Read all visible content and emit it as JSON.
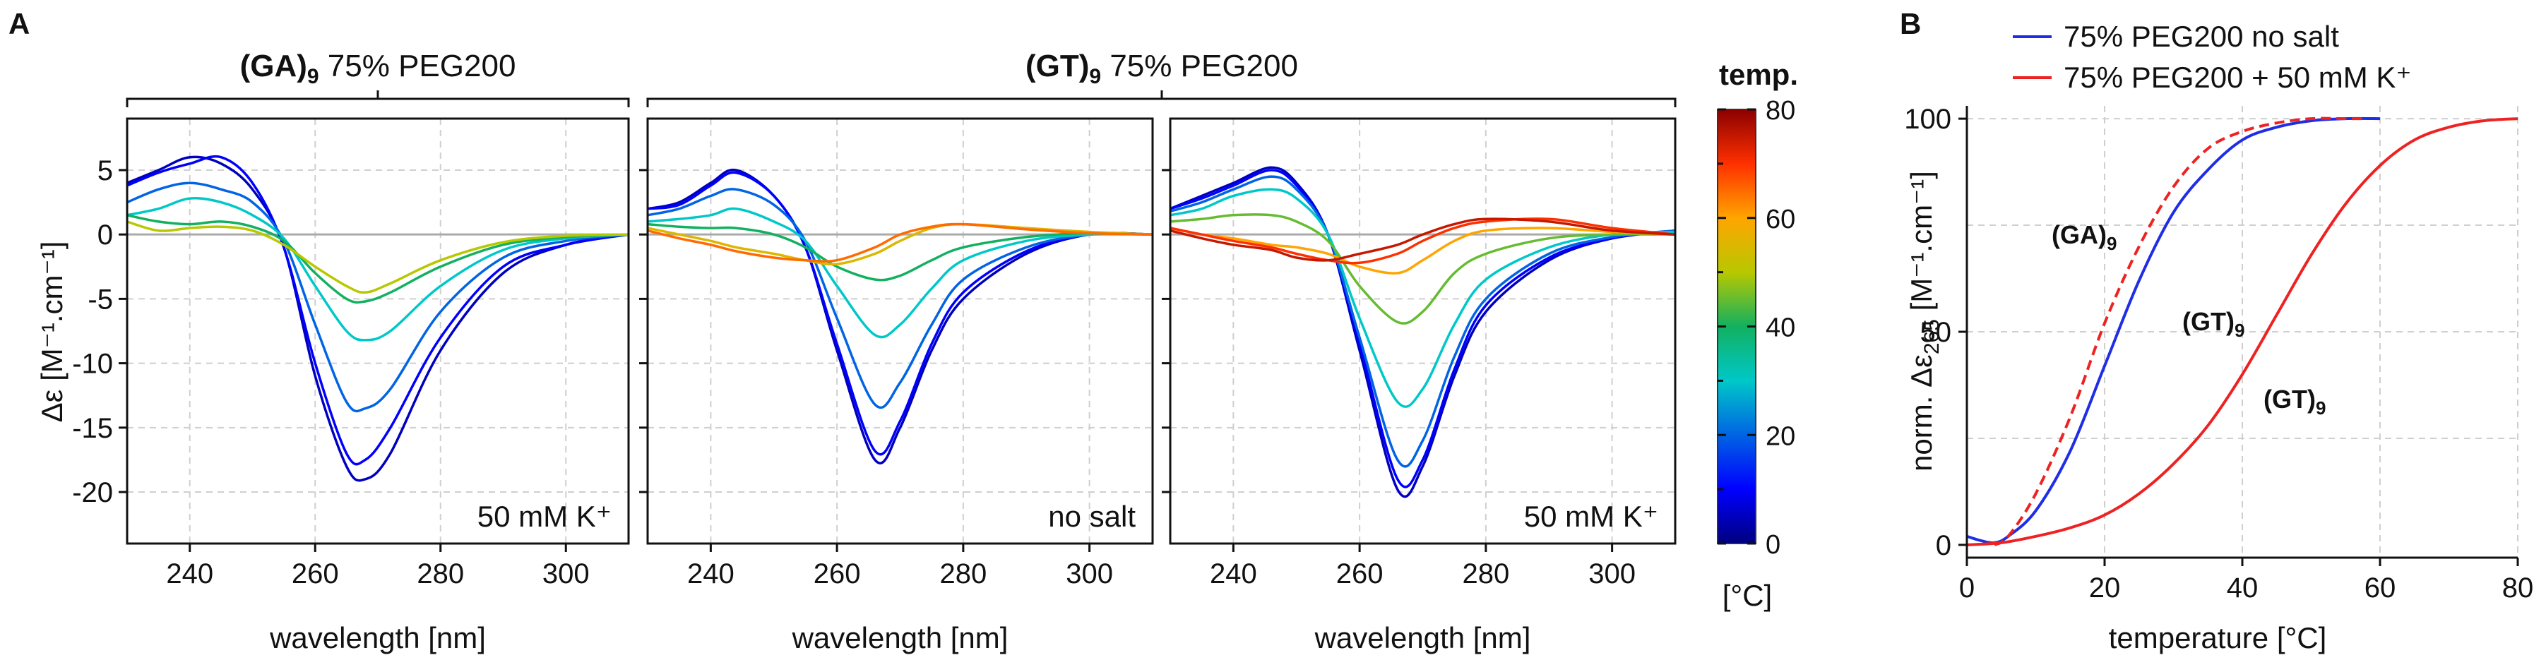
{
  "panel_labels": {
    "a": "A",
    "b": "B"
  },
  "colorbar": {
    "title": "temp.",
    "unit": "[°C]",
    "ticks": [
      0,
      20,
      40,
      60,
      80
    ],
    "range": [
      0,
      80
    ]
  },
  "panel_a": {
    "ylabel": "Δε [M⁻¹.cm⁻¹]",
    "xlabel": "wavelength [nm]",
    "xlim": [
      230,
      310
    ],
    "ylim": [
      -24,
      9
    ],
    "xticks": [
      240,
      260,
      280,
      300
    ],
    "yticks": [
      5,
      0,
      -5,
      -10,
      -15,
      -20
    ],
    "groups": [
      {
        "main": "(GA)",
        "sub": "9",
        "rest": " 75% PEG200"
      },
      {
        "main": "(GT)",
        "sub": "9",
        "rest": " 75% PEG200"
      }
    ],
    "subpanels": [
      {
        "annotation": "50 mM K⁺"
      },
      {
        "annotation": "no salt"
      },
      {
        "annotation": "50 mM K⁺"
      }
    ]
  },
  "panel_b": {
    "ylabel_main": "norm. Δε",
    "ylabel_sub": "265",
    "ylabel_rest": " [M⁻¹.cm⁻¹]",
    "xlabel": "temperature [°C]",
    "xlim": [
      0,
      80
    ],
    "ylim": [
      -3,
      103
    ],
    "xticks": [
      0,
      20,
      40,
      60,
      80
    ],
    "yticks": [
      0,
      50,
      100
    ],
    "legend": [
      {
        "label": "75% PEG200 no salt",
        "color": "#1f2ee6"
      },
      {
        "label": "75% PEG200 + 50 mM K⁺",
        "color": "#ee2222"
      }
    ],
    "annotations": [
      {
        "main": "(GA)",
        "sub": "9",
        "color": "#ee2222"
      },
      {
        "main": "(GT)",
        "sub": "9",
        "color": "#1f2ee6"
      },
      {
        "main": "(GT)",
        "sub": "9",
        "color": "#ee2222"
      }
    ]
  },
  "chart_data": [
    {
      "type": "line",
      "title": "(GA)9 75% PEG200 — 50 mM K⁺",
      "xlabel": "wavelength [nm]",
      "ylabel": "Δε [M⁻¹.cm⁻¹]",
      "xlim": [
        230,
        310
      ],
      "ylim": [
        -24,
        9
      ],
      "x": [
        230,
        235,
        240,
        245,
        250,
        255,
        260,
        265,
        268,
        272,
        280,
        290,
        300,
        310
      ],
      "series": [
        {
          "temp": 5,
          "values": [
            4,
            5,
            6,
            5.5,
            3.5,
            -1,
            -11,
            -18,
            -19,
            -17,
            -9,
            -3,
            -0.8,
            0
          ]
        },
        {
          "temp": 10,
          "values": [
            3.8,
            4.8,
            5.5,
            6,
            4,
            -1,
            -10,
            -17,
            -17.5,
            -15,
            -8,
            -2.5,
            -0.8,
            0
          ]
        },
        {
          "temp": 20,
          "values": [
            2.5,
            3.5,
            4,
            3.5,
            2.5,
            -0.5,
            -7,
            -13,
            -13.5,
            -12,
            -6,
            -1.8,
            -0.5,
            0
          ]
        },
        {
          "temp": 30,
          "values": [
            1.5,
            2,
            2.8,
            2.5,
            1.5,
            -0.3,
            -4,
            -7.5,
            -8.2,
            -7.5,
            -4,
            -1.2,
            -0.3,
            0
          ]
        },
        {
          "temp": 40,
          "values": [
            1.5,
            1,
            0.8,
            1,
            0.6,
            -0.5,
            -3,
            -5,
            -5.2,
            -4.5,
            -2.5,
            -0.8,
            -0.2,
            0
          ]
        },
        {
          "temp": 50,
          "values": [
            1,
            0.3,
            0.5,
            0.6,
            0.3,
            -0.8,
            -2.5,
            -4,
            -4.5,
            -3.8,
            -2,
            -0.6,
            -0.1,
            0
          ]
        }
      ]
    },
    {
      "type": "line",
      "title": "(GT)9 75% PEG200 — no salt",
      "xlabel": "wavelength [nm]",
      "ylabel": "Δε [M⁻¹.cm⁻¹]",
      "xlim": [
        230,
        310
      ],
      "ylim": [
        -24,
        9
      ],
      "x": [
        230,
        235,
        240,
        244,
        250,
        255,
        260,
        266,
        270,
        275,
        280,
        290,
        300,
        310
      ],
      "series": [
        {
          "temp": 5,
          "values": [
            2,
            2.5,
            4,
            5,
            3,
            -1,
            -9,
            -17.5,
            -15,
            -9,
            -5,
            -1.5,
            0,
            0
          ]
        },
        {
          "temp": 10,
          "values": [
            2,
            2.3,
            3.8,
            4.8,
            3,
            -1,
            -8.5,
            -16.8,
            -14.5,
            -8.5,
            -4.5,
            -1.3,
            0,
            0
          ]
        },
        {
          "temp": 20,
          "values": [
            1.5,
            2,
            3,
            3.5,
            2.3,
            -0.5,
            -6.5,
            -13.2,
            -11.5,
            -7,
            -3.5,
            -1,
            0,
            0
          ]
        },
        {
          "temp": 30,
          "values": [
            1,
            1.2,
            1.5,
            2,
            1,
            -0.5,
            -4,
            -7.8,
            -7,
            -4.2,
            -2,
            -0.5,
            0,
            0
          ]
        },
        {
          "temp": 40,
          "values": [
            0.8,
            0.6,
            0.5,
            0.5,
            0,
            -1,
            -2.5,
            -3.5,
            -3.2,
            -2,
            -1,
            -0.2,
            0.1,
            0
          ]
        },
        {
          "temp": 55,
          "values": [
            0.5,
            0,
            -0.5,
            -1,
            -1.5,
            -2,
            -2.3,
            -1.5,
            -0.5,
            0.5,
            0.8,
            0.5,
            0.2,
            0
          ]
        },
        {
          "temp": 65,
          "values": [
            0.3,
            -0.3,
            -0.8,
            -1.3,
            -1.8,
            -2,
            -2,
            -1,
            0,
            0.6,
            0.8,
            0.4,
            0.1,
            0
          ]
        }
      ]
    },
    {
      "type": "line",
      "title": "(GT)9 75% PEG200 — 50 mM K⁺",
      "xlabel": "wavelength [nm]",
      "ylabel": "Δε [M⁻¹.cm⁻¹]",
      "xlim": [
        230,
        310
      ],
      "ylim": [
        -24,
        9
      ],
      "x": [
        230,
        235,
        240,
        246,
        250,
        255,
        260,
        266,
        270,
        275,
        280,
        290,
        300,
        310
      ],
      "series": [
        {
          "temp": 5,
          "values": [
            2,
            3,
            4,
            5.2,
            4,
            0,
            -9,
            -19.8,
            -18,
            -11,
            -6,
            -2,
            -0.3,
            0.3
          ]
        },
        {
          "temp": 10,
          "values": [
            2,
            2.8,
            3.8,
            5,
            3.8,
            0,
            -8.5,
            -19,
            -17.5,
            -10.5,
            -5.5,
            -1.8,
            -0.3,
            0.3
          ]
        },
        {
          "temp": 20,
          "values": [
            1.8,
            2.5,
            3.5,
            4.5,
            3.5,
            0,
            -8,
            -17.5,
            -16,
            -9.5,
            -5,
            -1.5,
            -0.2,
            0.3
          ]
        },
        {
          "temp": 30,
          "values": [
            1.5,
            2,
            3,
            3.5,
            2.8,
            0,
            -6.5,
            -13,
            -12,
            -7,
            -3.5,
            -1,
            0,
            0.2
          ]
        },
        {
          "temp": 45,
          "values": [
            1,
            1.2,
            1.5,
            1.5,
            1,
            -0.5,
            -4,
            -6.8,
            -6,
            -3,
            -1.5,
            -0.3,
            0,
            0
          ]
        },
        {
          "temp": 60,
          "values": [
            0.5,
            0,
            -0.3,
            -0.8,
            -1,
            -1.5,
            -2.5,
            -3,
            -2,
            -0.5,
            0.3,
            0.5,
            0.2,
            0
          ]
        },
        {
          "temp": 70,
          "values": [
            0.5,
            0,
            -0.5,
            -1,
            -1.5,
            -2,
            -2.2,
            -1.5,
            -0.5,
            0.5,
            1,
            1.2,
            0.5,
            0
          ]
        },
        {
          "temp": 75,
          "values": [
            0.3,
            -0.3,
            -0.8,
            -1.2,
            -1.8,
            -2,
            -1.5,
            -0.8,
            0,
            0.8,
            1.2,
            1,
            0.3,
            0
          ]
        }
      ]
    },
    {
      "type": "line",
      "title": "",
      "xlabel": "temperature [°C]",
      "ylabel": "norm. Δε265 [M⁻¹.cm⁻¹]",
      "xlim": [
        0,
        80
      ],
      "ylim": [
        -3,
        103
      ],
      "grid": true,
      "legend_position": "top",
      "series": [
        {
          "name": "75% PEG200 no salt",
          "label": "(GT)9",
          "color": "#1f2ee6",
          "style": "solid",
          "x": [
            0,
            2,
            4,
            6,
            10,
            15,
            20,
            25,
            30,
            35,
            40,
            45,
            50,
            55,
            60
          ],
          "values": [
            2,
            1,
            0.5,
            2,
            8,
            22,
            42,
            62,
            78,
            88,
            95,
            98,
            99.5,
            100,
            100
          ]
        },
        {
          "name": "",
          "label": "(GA)9",
          "color": "#ee2222",
          "style": "dashed",
          "x": [
            4,
            6,
            10,
            15,
            20,
            25,
            30,
            35,
            40,
            45,
            50,
            55,
            58
          ],
          "values": [
            0,
            2,
            12,
            30,
            52,
            70,
            84,
            93,
            97,
            99,
            100,
            100,
            100
          ]
        },
        {
          "name": "75% PEG200 + 50 mM K⁺",
          "label": "(GT)9",
          "color": "#ee2222",
          "style": "solid",
          "x": [
            0,
            5,
            10,
            15,
            20,
            25,
            30,
            35,
            40,
            45,
            50,
            55,
            60,
            65,
            70,
            75,
            80
          ],
          "values": [
            0,
            0.5,
            2,
            4,
            7,
            12,
            19,
            28,
            40,
            54,
            68,
            80,
            89,
            95,
            98,
            99.5,
            100
          ]
        }
      ]
    }
  ]
}
